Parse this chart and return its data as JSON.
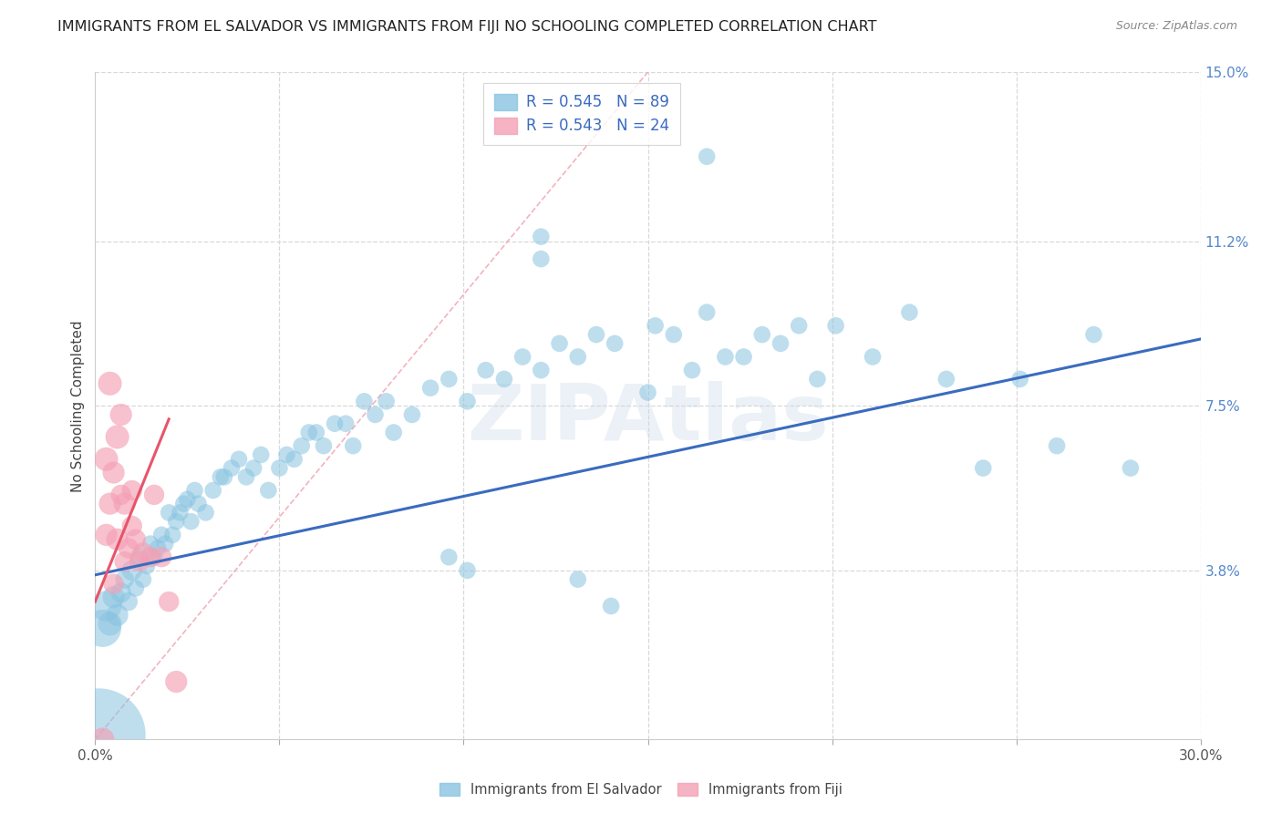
{
  "title": "IMMIGRANTS FROM EL SALVADOR VS IMMIGRANTS FROM FIJI NO SCHOOLING COMPLETED CORRELATION CHART",
  "source": "Source: ZipAtlas.com",
  "ylabel": "No Schooling Completed",
  "xlim": [
    0.0,
    0.3
  ],
  "ylim": [
    0.0,
    0.15
  ],
  "ytick_labels_right": [
    "15.0%",
    "11.2%",
    "7.5%",
    "3.8%"
  ],
  "ytick_positions_right": [
    0.15,
    0.112,
    0.075,
    0.038
  ],
  "watermark": "ZIPAtlas",
  "scatter_el_salvador": {
    "color": "#89c4e1",
    "alpha": 0.55,
    "data": [
      [
        0.001,
        0.001,
        55
      ],
      [
        0.002,
        0.025,
        22
      ],
      [
        0.003,
        0.03,
        18
      ],
      [
        0.004,
        0.026,
        14
      ],
      [
        0.005,
        0.032,
        13
      ],
      [
        0.006,
        0.028,
        13
      ],
      [
        0.007,
        0.033,
        12
      ],
      [
        0.008,
        0.036,
        11
      ],
      [
        0.009,
        0.031,
        11
      ],
      [
        0.01,
        0.038,
        12
      ],
      [
        0.011,
        0.034,
        10
      ],
      [
        0.012,
        0.041,
        11
      ],
      [
        0.013,
        0.036,
        10
      ],
      [
        0.014,
        0.039,
        10
      ],
      [
        0.015,
        0.044,
        10
      ],
      [
        0.016,
        0.041,
        10
      ],
      [
        0.017,
        0.043,
        10
      ],
      [
        0.018,
        0.046,
        10
      ],
      [
        0.019,
        0.044,
        10
      ],
      [
        0.02,
        0.051,
        10
      ],
      [
        0.021,
        0.046,
        10
      ],
      [
        0.022,
        0.049,
        10
      ],
      [
        0.023,
        0.051,
        10
      ],
      [
        0.024,
        0.053,
        10
      ],
      [
        0.025,
        0.054,
        10
      ],
      [
        0.026,
        0.049,
        10
      ],
      [
        0.027,
        0.056,
        10
      ],
      [
        0.028,
        0.053,
        10
      ],
      [
        0.03,
        0.051,
        10
      ],
      [
        0.032,
        0.056,
        10
      ],
      [
        0.034,
        0.059,
        10
      ],
      [
        0.035,
        0.059,
        10
      ],
      [
        0.037,
        0.061,
        10
      ],
      [
        0.039,
        0.063,
        10
      ],
      [
        0.041,
        0.059,
        10
      ],
      [
        0.043,
        0.061,
        10
      ],
      [
        0.045,
        0.064,
        10
      ],
      [
        0.047,
        0.056,
        10
      ],
      [
        0.05,
        0.061,
        10
      ],
      [
        0.052,
        0.064,
        10
      ],
      [
        0.054,
        0.063,
        10
      ],
      [
        0.056,
        0.066,
        10
      ],
      [
        0.058,
        0.069,
        10
      ],
      [
        0.06,
        0.069,
        10
      ],
      [
        0.062,
        0.066,
        10
      ],
      [
        0.065,
        0.071,
        10
      ],
      [
        0.068,
        0.071,
        10
      ],
      [
        0.07,
        0.066,
        10
      ],
      [
        0.073,
        0.076,
        10
      ],
      [
        0.076,
        0.073,
        10
      ],
      [
        0.079,
        0.076,
        10
      ],
      [
        0.081,
        0.069,
        10
      ],
      [
        0.086,
        0.073,
        10
      ],
      [
        0.091,
        0.079,
        10
      ],
      [
        0.096,
        0.081,
        10
      ],
      [
        0.101,
        0.076,
        10
      ],
      [
        0.106,
        0.083,
        10
      ],
      [
        0.111,
        0.081,
        10
      ],
      [
        0.116,
        0.086,
        10
      ],
      [
        0.121,
        0.083,
        10
      ],
      [
        0.126,
        0.089,
        10
      ],
      [
        0.131,
        0.086,
        10
      ],
      [
        0.136,
        0.091,
        10
      ],
      [
        0.141,
        0.089,
        10
      ],
      [
        0.15,
        0.078,
        10
      ],
      [
        0.152,
        0.093,
        10
      ],
      [
        0.157,
        0.091,
        10
      ],
      [
        0.162,
        0.083,
        10
      ],
      [
        0.166,
        0.096,
        10
      ],
      [
        0.171,
        0.086,
        10
      ],
      [
        0.176,
        0.086,
        10
      ],
      [
        0.181,
        0.091,
        10
      ],
      [
        0.186,
        0.089,
        10
      ],
      [
        0.191,
        0.093,
        10
      ],
      [
        0.196,
        0.081,
        10
      ],
      [
        0.201,
        0.093,
        10
      ],
      [
        0.211,
        0.086,
        10
      ],
      [
        0.221,
        0.096,
        10
      ],
      [
        0.231,
        0.081,
        10
      ],
      [
        0.241,
        0.061,
        10
      ],
      [
        0.251,
        0.081,
        10
      ],
      [
        0.261,
        0.066,
        10
      ],
      [
        0.271,
        0.091,
        10
      ],
      [
        0.281,
        0.061,
        10
      ],
      [
        0.166,
        0.131,
        10
      ],
      [
        0.121,
        0.113,
        10
      ],
      [
        0.096,
        0.041,
        10
      ],
      [
        0.131,
        0.036,
        10
      ],
      [
        0.121,
        0.108,
        10
      ],
      [
        0.101,
        0.038,
        10
      ],
      [
        0.14,
        0.03,
        10
      ]
    ]
  },
  "scatter_fiji": {
    "color": "#f4a0b5",
    "alpha": 0.65,
    "data": [
      [
        0.003,
        0.063,
        14
      ],
      [
        0.004,
        0.08,
        14
      ],
      [
        0.004,
        0.053,
        13
      ],
      [
        0.005,
        0.06,
        13
      ],
      [
        0.006,
        0.068,
        14
      ],
      [
        0.006,
        0.045,
        13
      ],
      [
        0.007,
        0.073,
        13
      ],
      [
        0.007,
        0.055,
        12
      ],
      [
        0.008,
        0.04,
        12
      ],
      [
        0.008,
        0.053,
        13
      ],
      [
        0.009,
        0.043,
        12
      ],
      [
        0.01,
        0.056,
        12
      ],
      [
        0.01,
        0.048,
        12
      ],
      [
        0.011,
        0.045,
        12
      ],
      [
        0.012,
        0.04,
        12
      ],
      [
        0.013,
        0.042,
        12
      ],
      [
        0.015,
        0.041,
        12
      ],
      [
        0.016,
        0.055,
        12
      ],
      [
        0.018,
        0.041,
        12
      ],
      [
        0.02,
        0.031,
        12
      ],
      [
        0.003,
        0.046,
        13
      ],
      [
        0.005,
        0.035,
        12
      ],
      [
        0.022,
        0.013,
        13
      ],
      [
        0.002,
        0.0,
        14
      ]
    ]
  },
  "trendline_el_salvador": {
    "color": "#3a6bbf",
    "linewidth": 2.2,
    "x_start": 0.0,
    "x_end": 0.3,
    "y_start": 0.037,
    "y_end": 0.09
  },
  "trendline_fiji": {
    "color": "#e8546a",
    "linewidth": 2.2,
    "x_start": 0.0,
    "x_end": 0.02,
    "y_start": 0.031,
    "y_end": 0.072
  },
  "diagonal_ref": {
    "color": "#f0a0b0",
    "linestyle": "dashed",
    "linewidth": 1.2,
    "x": [
      0.0,
      0.15
    ],
    "y": [
      0.0,
      0.15
    ]
  },
  "grid_color": "#d8d8d8",
  "background_color": "#ffffff",
  "title_fontsize": 11.5,
  "axis_label_fontsize": 11,
  "tick_fontsize": 11,
  "legend_fontsize": 12
}
